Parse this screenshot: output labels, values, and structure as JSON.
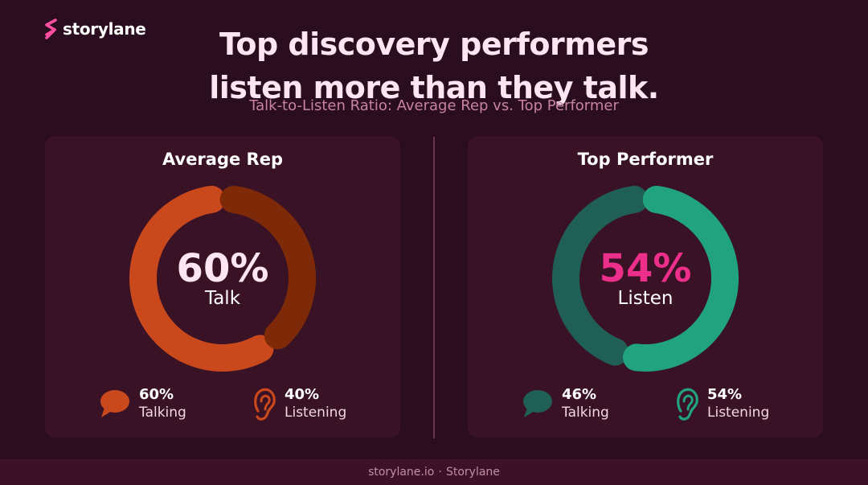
{
  "brand": {
    "name": "storylane",
    "accent": "#ff4fa0"
  },
  "title_line1": "Top discovery performers",
  "title_line2": "listen more than they talk.",
  "subtitle": "Talk-to-Listen Ratio: Average Rep vs. Top Performer",
  "colors": {
    "avg_talk": "#c9481c",
    "avg_listen": "#7e2a08",
    "top_talk": "#1f5f56",
    "top_listen": "#20a37e",
    "highlight": "#ec2f8a"
  },
  "chart_data": [
    {
      "type": "pie",
      "title": "Average Rep",
      "labels": [
        "Talking",
        "Listening"
      ],
      "values": [
        60,
        40
      ],
      "unit": "%",
      "center_value": "60%",
      "center_label": "Talk",
      "legend": [
        {
          "value": "60%",
          "label": "Talking",
          "icon": "speech-bubble-icon"
        },
        {
          "value": "40%",
          "label": "Listening",
          "icon": "ear-icon"
        }
      ]
    },
    {
      "type": "pie",
      "title": "Top Performer",
      "labels": [
        "Talking",
        "Listening"
      ],
      "values": [
        46,
        54
      ],
      "unit": "%",
      "center_value": "54%",
      "center_label": "Listen",
      "legend": [
        {
          "value": "46%",
          "label": "Talking",
          "icon": "speech-bubble-icon"
        },
        {
          "value": "54%",
          "label": "Listening",
          "icon": "ear-icon"
        }
      ]
    }
  ],
  "footer": {
    "site": "storylane.io",
    "separator": "·",
    "name": "Storylane"
  }
}
